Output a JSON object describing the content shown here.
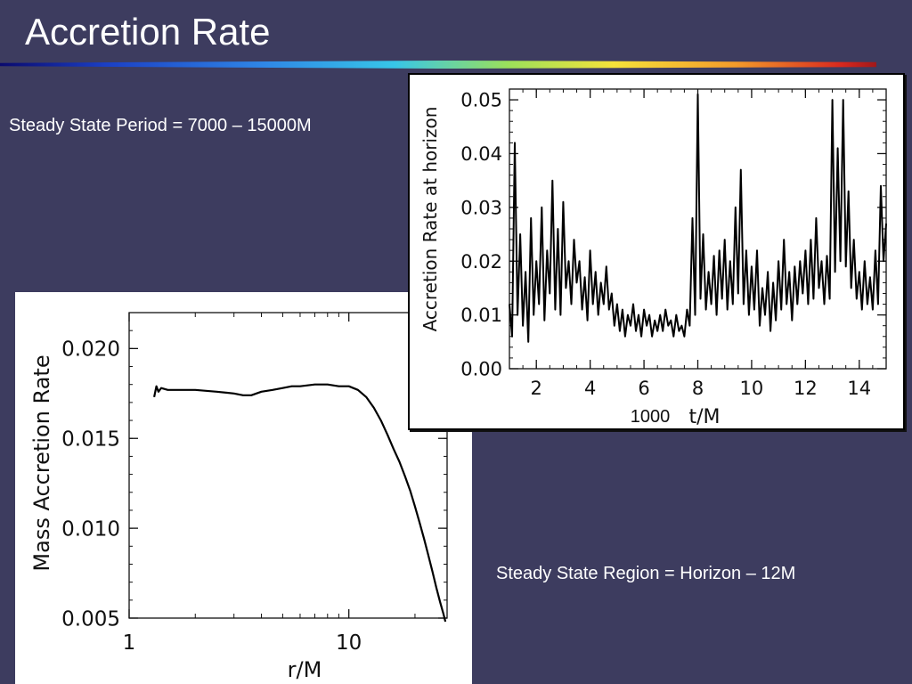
{
  "slide": {
    "title": "Accretion Rate",
    "period_note": "Steady State Period = 7000 – 15000M",
    "region_note": "Steady State Region = Horizon – 12M"
  },
  "colors": {
    "background": "#3d3c5f",
    "text": "#ffffff",
    "title_rule": [
      "#0a0a6e",
      "#1b3fc4",
      "#37c6e8",
      "#9be05a",
      "#f5e23a",
      "#f39a2a",
      "#d8281e"
    ]
  },
  "chart_data": [
    {
      "type": "line",
      "title": "",
      "xlabel": "r/M",
      "ylabel": "Mass Accretion Rate",
      "xscale": "log",
      "xlim": [
        1,
        28
      ],
      "ylim": [
        0.005,
        0.022
      ],
      "x_ticks": [
        1,
        10
      ],
      "x_tick_labels": [
        "1",
        "10"
      ],
      "y_ticks": [
        0.005,
        0.01,
        0.015,
        0.02
      ],
      "y_tick_labels": [
        "0.005",
        "0.010",
        "0.015",
        "0.020"
      ],
      "grid": false,
      "series": [
        {
          "x": [
            1.3,
            1.33,
            1.36,
            1.4,
            1.5,
            1.7,
            2.0,
            2.5,
            3.0,
            3.3,
            3.6,
            4.0,
            4.5,
            5.0,
            5.5,
            6.0,
            7.0,
            8.0,
            9.0,
            10.0,
            11.0,
            12.0,
            13.0,
            14.0,
            15.0,
            16.0,
            17.0,
            18.0,
            19.0,
            20.0,
            21.0,
            22.0,
            23.0,
            24.0,
            25.0,
            26.0,
            27.0,
            27.5
          ],
          "y": [
            0.0173,
            0.0179,
            0.0176,
            0.0178,
            0.0177,
            0.0177,
            0.0177,
            0.0176,
            0.0175,
            0.0174,
            0.0174,
            0.0176,
            0.0177,
            0.0178,
            0.0179,
            0.0179,
            0.018,
            0.018,
            0.0179,
            0.0179,
            0.0177,
            0.0173,
            0.0167,
            0.016,
            0.0152,
            0.0144,
            0.0137,
            0.0129,
            0.0121,
            0.0112,
            0.0103,
            0.0094,
            0.0085,
            0.0076,
            0.0067,
            0.0059,
            0.0052,
            0.0048
          ]
        }
      ]
    },
    {
      "type": "line",
      "title": "",
      "xlabel": "t/M",
      "x_multiplier_label": "1000",
      "ylabel": "Accretion Rate at horizon",
      "xlim": [
        1,
        15
      ],
      "ylim": [
        0,
        0.052
      ],
      "x_ticks": [
        2,
        4,
        6,
        8,
        10,
        12,
        14
      ],
      "x_tick_labels": [
        "2",
        "4",
        "6",
        "8",
        "10",
        "12",
        "14"
      ],
      "y_ticks": [
        0,
        0.01,
        0.02,
        0.03,
        0.04,
        0.05
      ],
      "y_tick_labels": [
        "0.00",
        "0.01",
        "0.02",
        "0.03",
        "0.04",
        "0.05"
      ],
      "grid": false,
      "series": [
        {
          "x": [
            1.0,
            1.1,
            1.2,
            1.3,
            1.4,
            1.5,
            1.6,
            1.7,
            1.8,
            1.9,
            2.0,
            2.1,
            2.2,
            2.3,
            2.4,
            2.5,
            2.6,
            2.7,
            2.8,
            2.9,
            3.0,
            3.1,
            3.2,
            3.3,
            3.4,
            3.5,
            3.6,
            3.7,
            3.8,
            3.9,
            4.0,
            4.1,
            4.2,
            4.3,
            4.4,
            4.5,
            4.6,
            4.7,
            4.8,
            4.9,
            5.0,
            5.1,
            5.2,
            5.3,
            5.4,
            5.5,
            5.6,
            5.7,
            5.8,
            5.9,
            6.0,
            6.1,
            6.2,
            6.3,
            6.4,
            6.5,
            6.6,
            6.7,
            6.8,
            6.9,
            7.0,
            7.1,
            7.2,
            7.3,
            7.4,
            7.5,
            7.6,
            7.7,
            7.8,
            7.9,
            8.0,
            8.1,
            8.2,
            8.3,
            8.4,
            8.5,
            8.6,
            8.7,
            8.8,
            8.9,
            9.0,
            9.1,
            9.2,
            9.3,
            9.4,
            9.5,
            9.6,
            9.7,
            9.8,
            9.9,
            10.0,
            10.1,
            10.2,
            10.3,
            10.4,
            10.5,
            10.6,
            10.7,
            10.8,
            10.9,
            11.0,
            11.1,
            11.2,
            11.3,
            11.4,
            11.5,
            11.6,
            11.7,
            11.8,
            11.9,
            12.0,
            12.1,
            12.2,
            12.3,
            12.4,
            12.5,
            12.6,
            12.7,
            12.8,
            12.9,
            13.0,
            13.1,
            13.2,
            13.3,
            13.4,
            13.5,
            13.6,
            13.7,
            13.8,
            13.9,
            14.0,
            14.1,
            14.2,
            14.3,
            14.4,
            14.5,
            14.6,
            14.7,
            14.8,
            14.9,
            15.0
          ],
          "y": [
            0.012,
            0.006,
            0.042,
            0.01,
            0.025,
            0.008,
            0.018,
            0.005,
            0.028,
            0.01,
            0.02,
            0.012,
            0.03,
            0.009,
            0.022,
            0.014,
            0.035,
            0.011,
            0.026,
            0.01,
            0.031,
            0.015,
            0.02,
            0.012,
            0.024,
            0.016,
            0.02,
            0.011,
            0.017,
            0.009,
            0.022,
            0.012,
            0.018,
            0.01,
            0.016,
            0.012,
            0.019,
            0.011,
            0.014,
            0.008,
            0.012,
            0.007,
            0.011,
            0.006,
            0.01,
            0.008,
            0.012,
            0.007,
            0.01,
            0.006,
            0.011,
            0.008,
            0.01,
            0.006,
            0.009,
            0.007,
            0.01,
            0.007,
            0.011,
            0.008,
            0.009,
            0.006,
            0.01,
            0.007,
            0.008,
            0.006,
            0.011,
            0.008,
            0.028,
            0.01,
            0.051,
            0.013,
            0.025,
            0.011,
            0.018,
            0.012,
            0.021,
            0.01,
            0.022,
            0.013,
            0.024,
            0.011,
            0.02,
            0.012,
            0.03,
            0.014,
            0.037,
            0.012,
            0.022,
            0.01,
            0.019,
            0.011,
            0.022,
            0.008,
            0.015,
            0.01,
            0.018,
            0.007,
            0.016,
            0.009,
            0.02,
            0.011,
            0.024,
            0.012,
            0.018,
            0.009,
            0.019,
            0.012,
            0.02,
            0.014,
            0.022,
            0.012,
            0.024,
            0.013,
            0.028,
            0.015,
            0.02,
            0.012,
            0.021,
            0.013,
            0.05,
            0.018,
            0.041,
            0.02,
            0.05,
            0.019,
            0.033,
            0.015,
            0.024,
            0.013,
            0.018,
            0.011,
            0.02,
            0.012,
            0.017,
            0.011,
            0.022,
            0.012,
            0.034,
            0.02,
            0.027
          ]
        }
      ]
    }
  ]
}
